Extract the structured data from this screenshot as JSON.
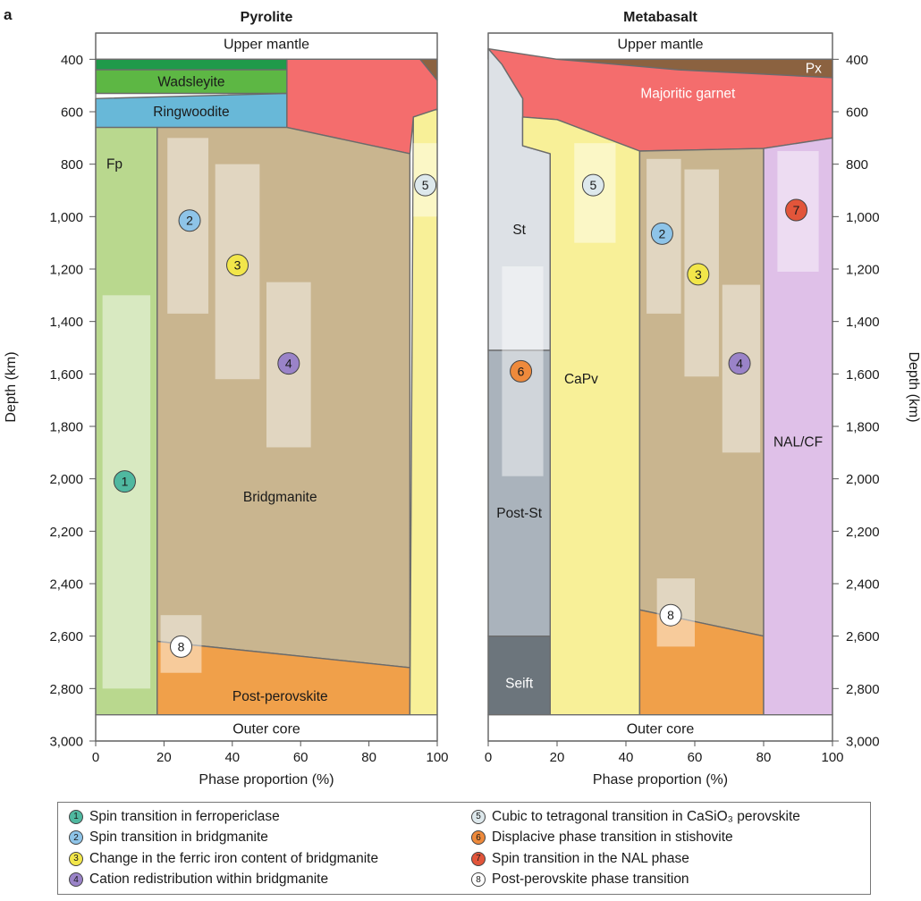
{
  "panel_letter": "a",
  "chart_data": [
    {
      "type": "area",
      "title": "Pyrolite",
      "xlabel": "Phase proportion (%)",
      "ylabel": "Depth (km)",
      "xlim": [
        0,
        100
      ],
      "ylim": [
        300,
        3000
      ],
      "x_ticks": [
        "0",
        "20",
        "40",
        "60",
        "80",
        "100"
      ],
      "y_ticks": [
        "400",
        "600",
        "800",
        "1,000",
        "1,200",
        "1,400",
        "1,600",
        "1,800",
        "2,000",
        "2,200",
        "2,400",
        "2,600",
        "2,800",
        "3,000"
      ],
      "top_label": "Upper mantle",
      "bottom_label": "Outer core",
      "phases": [
        {
          "name": "Upper mantle",
          "color": "#ffffff",
          "polygon": [
            [
              0,
              300
            ],
            [
              100,
              300
            ],
            [
              100,
              400
            ],
            [
              0,
              400
            ]
          ]
        },
        {
          "name": "",
          "color": "#1f9a4a",
          "polygon": [
            [
              0,
              400
            ],
            [
              56,
              400
            ],
            [
              56,
              440
            ],
            [
              0,
              440
            ]
          ]
        },
        {
          "name": "Wadsleyite",
          "color": "#5db744",
          "polygon": [
            [
              0,
              440
            ],
            [
              56,
              440
            ],
            [
              56,
              530
            ],
            [
              0,
              530
            ]
          ]
        },
        {
          "name": "Ringwoodite",
          "color": "#68b8d8",
          "polygon": [
            [
              0,
              550
            ],
            [
              56,
              530
            ],
            [
              56,
              660
            ],
            [
              0,
              660
            ]
          ]
        },
        {
          "name": "",
          "color": "#f46d6d",
          "polygon": [
            [
              56,
              400
            ],
            [
              95,
              400
            ],
            [
              100,
              480
            ],
            [
              100,
              590
            ],
            [
              93,
              620
            ],
            [
              92,
              760
            ],
            [
              56,
              660
            ]
          ]
        },
        {
          "name": "",
          "color": "#8b6240",
          "polygon": [
            [
              95,
              400
            ],
            [
              100,
              400
            ],
            [
              100,
              480
            ]
          ]
        },
        {
          "name": "Fp",
          "color": "#b9d88e",
          "polygon": [
            [
              0,
              660
            ],
            [
              18,
              660
            ],
            [
              18,
              2900
            ],
            [
              0,
              2900
            ]
          ]
        },
        {
          "name": "Bridgmanite",
          "color": "#c9b58f",
          "polygon": [
            [
              18,
              660
            ],
            [
              56,
              660
            ],
            [
              92,
              760
            ],
            [
              92,
              2720
            ],
            [
              18,
              2620
            ]
          ]
        },
        {
          "name": "Post-perovskite",
          "color": "#f0a04a",
          "polygon": [
            [
              18,
              2620
            ],
            [
              92,
              2720
            ],
            [
              92,
              2900
            ],
            [
              18,
              2900
            ]
          ]
        },
        {
          "name": "",
          "color": "#f8f098",
          "polygon": [
            [
              93,
              620
            ],
            [
              100,
              590
            ],
            [
              100,
              2900
            ],
            [
              92,
              2900
            ]
          ]
        },
        {
          "name": "Outer core",
          "color": "#ffffff",
          "polygon": [
            [
              0,
              2900
            ],
            [
              100,
              2900
            ],
            [
              100,
              3000
            ],
            [
              0,
              3000
            ]
          ]
        }
      ],
      "highlight_ranges": [
        {
          "x": [
            2,
            16
          ],
          "y": [
            1300,
            2800
          ]
        },
        {
          "x": [
            21,
            33
          ],
          "y": [
            700,
            1370
          ]
        },
        {
          "x": [
            35,
            48
          ],
          "y": [
            800,
            1620
          ]
        },
        {
          "x": [
            50,
            63
          ],
          "y": [
            1250,
            1880
          ]
        },
        {
          "x": [
            93,
            100
          ],
          "y": [
            720,
            1000
          ]
        },
        {
          "x": [
            19,
            31
          ],
          "y": [
            2520,
            2740
          ]
        }
      ],
      "markers": [
        {
          "label": "1",
          "x": 8.5,
          "y": 2010,
          "color": "#4fb8a0"
        },
        {
          "label": "2",
          "x": 27.5,
          "y": 1015,
          "color": "#8ec4e8"
        },
        {
          "label": "3",
          "x": 41.5,
          "y": 1185,
          "color": "#f2e64a"
        },
        {
          "label": "4",
          "x": 56.5,
          "y": 1560,
          "color": "#9a83c8"
        },
        {
          "label": "5",
          "x": 96.5,
          "y": 880,
          "color": "#dde8ec"
        },
        {
          "label": "8",
          "x": 25,
          "y": 2640,
          "color": "#ffffff"
        }
      ]
    },
    {
      "type": "area",
      "title": "Metabasalt",
      "xlabel": "Phase proportion (%)",
      "ylabel": "Depth (km)",
      "xlim": [
        0,
        100
      ],
      "ylim": [
        300,
        3000
      ],
      "x_ticks": [
        "0",
        "20",
        "40",
        "60",
        "80",
        "100"
      ],
      "y_ticks": [
        "400",
        "600",
        "800",
        "1,000",
        "1,200",
        "1,400",
        "1,600",
        "1,800",
        "2,000",
        "2,200",
        "2,400",
        "2,600",
        "2,800",
        "3,000"
      ],
      "top_label": "Upper mantle",
      "bottom_label": "Outer core",
      "phases": [
        {
          "name": "Upper mantle",
          "color": "#ffffff",
          "polygon": [
            [
              0,
              300
            ],
            [
              100,
              300
            ],
            [
              100,
              400
            ],
            [
              0,
              400
            ]
          ]
        },
        {
          "name": "Px",
          "color": "#8b6240",
          "polygon": [
            [
              20,
              400
            ],
            [
              100,
              400
            ],
            [
              100,
              470
            ],
            [
              55,
              440
            ]
          ]
        },
        {
          "name": "Majoritic garnet",
          "color": "#f46d6d",
          "polygon": [
            [
              0,
              360
            ],
            [
              20,
              400
            ],
            [
              55,
              440
            ],
            [
              100,
              470
            ],
            [
              100,
              700
            ],
            [
              80,
              740
            ],
            [
              44,
              750
            ],
            [
              30,
              680
            ],
            [
              20,
              630
            ],
            [
              10,
              620
            ],
            [
              10,
              550
            ],
            [
              4,
              420
            ]
          ]
        },
        {
          "name": "St",
          "color": "#dde1e6",
          "polygon": [
            [
              0,
              360
            ],
            [
              4,
              420
            ],
            [
              10,
              550
            ],
            [
              10,
              730
            ],
            [
              18,
              760
            ],
            [
              18,
              1510
            ],
            [
              0,
              1510
            ]
          ]
        },
        {
          "name": "CaPv",
          "color": "#f8f098",
          "polygon": [
            [
              10,
              620
            ],
            [
              20,
              630
            ],
            [
              30,
              680
            ],
            [
              44,
              750
            ],
            [
              44,
              2900
            ],
            [
              18,
              2900
            ],
            [
              18,
              760
            ],
            [
              10,
              730
            ]
          ]
        },
        {
          "name": "Post-St",
          "color": "#aab3bc",
          "polygon": [
            [
              0,
              1510
            ],
            [
              18,
              1510
            ],
            [
              18,
              2600
            ],
            [
              0,
              2600
            ]
          ]
        },
        {
          "name": "Seift",
          "color": "#6c757c",
          "polygon": [
            [
              0,
              2600
            ],
            [
              18,
              2600
            ],
            [
              18,
              2900
            ],
            [
              0,
              2900
            ]
          ]
        },
        {
          "name": "",
          "color": "#c9b58f",
          "polygon": [
            [
              44,
              750
            ],
            [
              80,
              740
            ],
            [
              80,
              2600
            ],
            [
              44,
              2500
            ]
          ]
        },
        {
          "name": "",
          "color": "#f0a04a",
          "polygon": [
            [
              44,
              2500
            ],
            [
              80,
              2600
            ],
            [
              80,
              2900
            ],
            [
              44,
              2900
            ]
          ]
        },
        {
          "name": "NAL/CF",
          "color": "#dfc0e8",
          "polygon": [
            [
              80,
              740
            ],
            [
              100,
              700
            ],
            [
              100,
              2900
            ],
            [
              80,
              2900
            ]
          ]
        },
        {
          "name": "Outer core",
          "color": "#ffffff",
          "polygon": [
            [
              0,
              2900
            ],
            [
              100,
              2900
            ],
            [
              100,
              3000
            ],
            [
              0,
              3000
            ]
          ]
        }
      ],
      "highlight_ranges": [
        {
          "x": [
            25,
            37
          ],
          "y": [
            720,
            1100
          ]
        },
        {
          "x": [
            4,
            16
          ],
          "y": [
            1190,
            1990
          ]
        },
        {
          "x": [
            46,
            56
          ],
          "y": [
            780,
            1370
          ]
        },
        {
          "x": [
            57,
            67
          ],
          "y": [
            820,
            1610
          ]
        },
        {
          "x": [
            68,
            79
          ],
          "y": [
            1260,
            1900
          ]
        },
        {
          "x": [
            84,
            96
          ],
          "y": [
            750,
            1210
          ]
        },
        {
          "x": [
            49,
            60
          ],
          "y": [
            2380,
            2640
          ]
        }
      ],
      "markers": [
        {
          "label": "5",
          "x": 30.5,
          "y": 880,
          "color": "#dde8ec"
        },
        {
          "label": "6",
          "x": 9.5,
          "y": 1590,
          "color": "#ee8a3c"
        },
        {
          "label": "2",
          "x": 50.5,
          "y": 1065,
          "color": "#8ec4e8"
        },
        {
          "label": "3",
          "x": 61,
          "y": 1220,
          "color": "#f2e64a"
        },
        {
          "label": "4",
          "x": 73,
          "y": 1560,
          "color": "#9a83c8"
        },
        {
          "label": "7",
          "x": 89.5,
          "y": 975,
          "color": "#e2553a"
        },
        {
          "label": "8",
          "x": 53,
          "y": 2520,
          "color": "#ffffff"
        }
      ]
    }
  ],
  "legend": {
    "left": [
      {
        "marker": "1",
        "color": "#4fb8a0",
        "text": "Spin transition in ferropericlase"
      },
      {
        "marker": "2",
        "color": "#8ec4e8",
        "text": "Spin transition in bridgmanite"
      },
      {
        "marker": "3",
        "color": "#f2e64a",
        "text": "Change in the ferric iron content of bridgmanite"
      },
      {
        "marker": "4",
        "color": "#9a83c8",
        "text": "Cation redistribution within bridgmanite"
      }
    ],
    "right": [
      {
        "marker": "5",
        "color": "#dde8ec",
        "text": "Cubic to tetragonal transition in CaSiO₃ perovskite"
      },
      {
        "marker": "6",
        "color": "#ee8a3c",
        "text": "Displacive phase transition in stishovite"
      },
      {
        "marker": "7",
        "color": "#e2553a",
        "text": "Spin transition in the NAL phase"
      },
      {
        "marker": "8",
        "color": "#ffffff",
        "text": "Post-perovskite phase transition"
      }
    ]
  }
}
